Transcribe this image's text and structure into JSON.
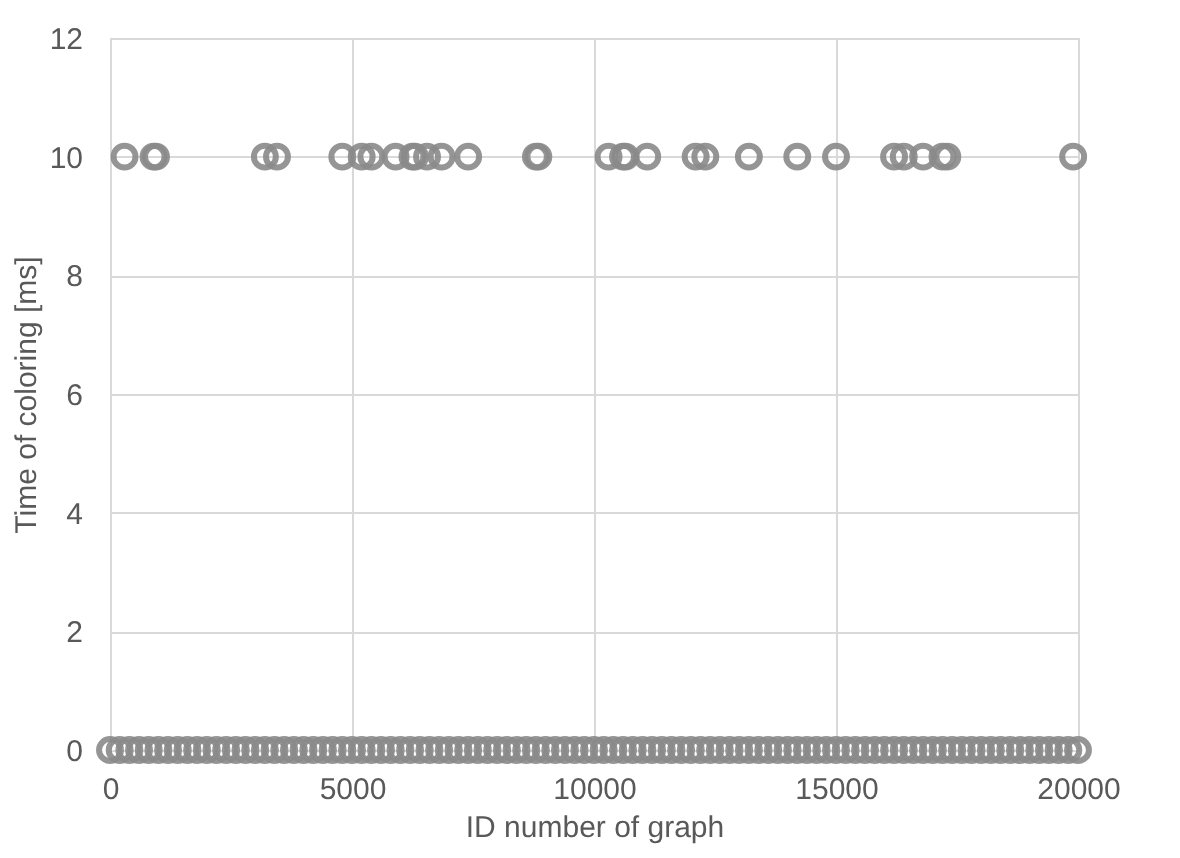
{
  "chart_data": {
    "type": "scatter",
    "xlabel": "ID number of graph",
    "ylabel": "Time of coloring [ms]",
    "xlim": [
      0,
      20000
    ],
    "xticks": [
      0,
      5000,
      10000,
      15000,
      20000
    ],
    "ylim": [
      0,
      12
    ],
    "yticks": [
      0,
      2,
      4,
      6,
      8,
      10,
      12
    ],
    "grid": true,
    "legend": false,
    "marker": "circle",
    "series": [
      {
        "color": "#8a8a8a",
        "x": [
          0,
          200,
          400,
          600,
          800,
          1000,
          1200,
          1400,
          1600,
          1800,
          2000,
          2200,
          2400,
          2600,
          2800,
          3000,
          3200,
          3400,
          3600,
          3800,
          4000,
          4200,
          4400,
          4600,
          4800,
          5000,
          5200,
          5400,
          5600,
          5800,
          6000,
          6200,
          6400,
          6600,
          6800,
          7000,
          7200,
          7400,
          7600,
          7800,
          8000,
          8200,
          8400,
          8600,
          8800,
          9000,
          9200,
          9400,
          9600,
          9800,
          10000,
          10200,
          10400,
          10600,
          10800,
          11000,
          11200,
          11400,
          11600,
          11800,
          12000,
          12200,
          12400,
          12600,
          12800,
          13000,
          13200,
          13400,
          13600,
          13800,
          14000,
          14200,
          14400,
          14600,
          14800,
          15000,
          15200,
          15400,
          15600,
          15800,
          16000,
          16200,
          16400,
          16600,
          16800,
          17000,
          17200,
          17400,
          17600,
          17800,
          18000,
          18200,
          18400,
          18600,
          18800,
          19000,
          19200,
          19400,
          19600,
          19800,
          20000,
          300,
          900,
          950,
          3200,
          3450,
          4800,
          5200,
          5400,
          5900,
          6250,
          6300,
          6550,
          6850,
          7400,
          8800,
          8850,
          10300,
          10600,
          10650,
          11100,
          12100,
          12300,
          13200,
          14200,
          15000,
          16200,
          16400,
          16800,
          17200,
          17300,
          19900
        ],
        "values": [
          0,
          0,
          0,
          0,
          0,
          0,
          0,
          0,
          0,
          0,
          0,
          0,
          0,
          0,
          0,
          0,
          0,
          0,
          0,
          0,
          0,
          0,
          0,
          0,
          0,
          0,
          0,
          0,
          0,
          0,
          0,
          0,
          0,
          0,
          0,
          0,
          0,
          0,
          0,
          0,
          0,
          0,
          0,
          0,
          0,
          0,
          0,
          0,
          0,
          0,
          0,
          0,
          0,
          0,
          0,
          0,
          0,
          0,
          0,
          0,
          0,
          0,
          0,
          0,
          0,
          0,
          0,
          0,
          0,
          0,
          0,
          0,
          0,
          0,
          0,
          0,
          0,
          0,
          0,
          0,
          0,
          0,
          0,
          0,
          0,
          0,
          0,
          0,
          0,
          0,
          0,
          0,
          0,
          0,
          0,
          0,
          0,
          0,
          0,
          0,
          0,
          10,
          10,
          10,
          10,
          10,
          10,
          10,
          10,
          10,
          10,
          10,
          10,
          10,
          10,
          10,
          10,
          10,
          10,
          10,
          10,
          10,
          10,
          10,
          10,
          10,
          10,
          10,
          10,
          10,
          10,
          10
        ]
      }
    ]
  }
}
